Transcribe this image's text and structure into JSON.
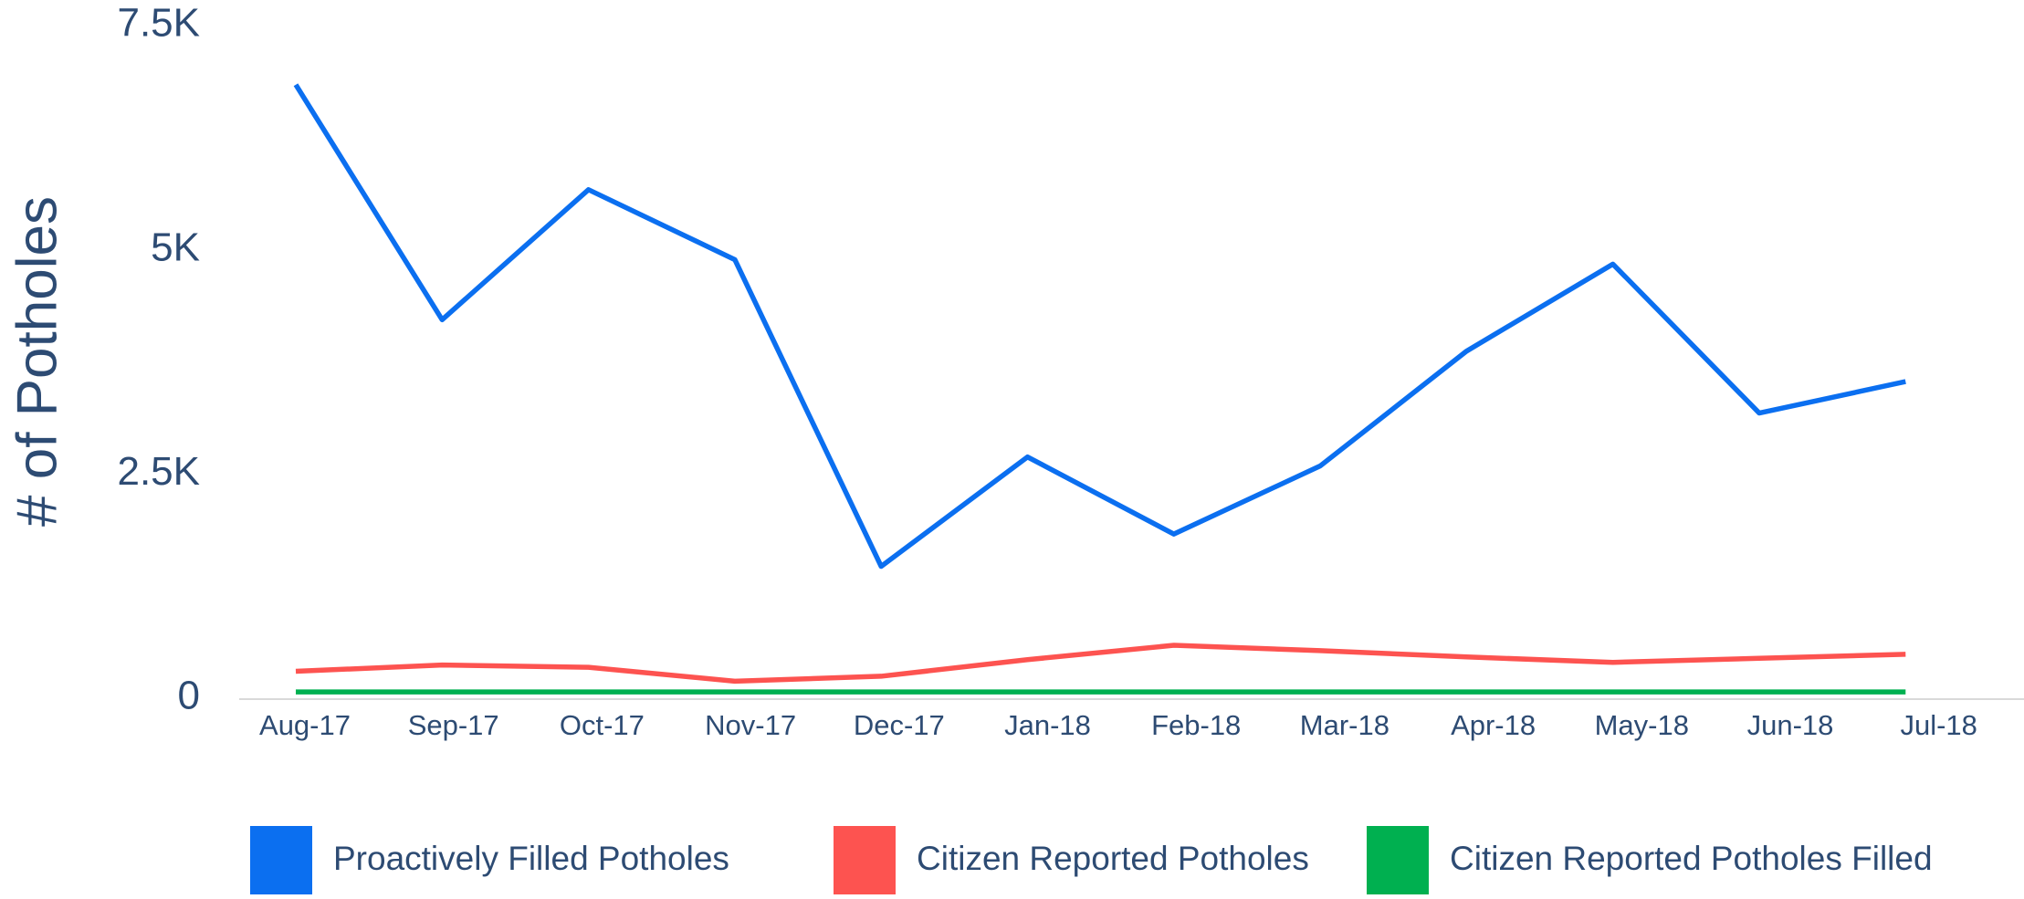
{
  "chart_data": {
    "type": "line",
    "y_label": "# of Potholes",
    "categories": [
      "Aug-17",
      "Sep-17",
      "Oct-17",
      "Nov-17",
      "Dec-17",
      "Jan-18",
      "Feb-18",
      "Mar-18",
      "Apr-18",
      "May-18",
      "Jun-18",
      "Jul-18"
    ],
    "series": [
      {
        "name": "Proactively Filled Potholes",
        "color": "#0b6ff0",
        "values": [
          6840,
          4220,
          5670,
          4890,
          1470,
          2690,
          1830,
          2590,
          3870,
          4840,
          3180,
          3530
        ]
      },
      {
        "name": "Citizen Reported Potholes",
        "color": "#fd5350",
        "values": [
          300,
          370,
          345,
          190,
          245,
          430,
          590,
          530,
          460,
          400,
          445,
          490
        ]
      },
      {
        "name": "Citizen Reported Potholes Filled",
        "color": "#00b050",
        "values": [
          70,
          70,
          70,
          70,
          70,
          70,
          70,
          70,
          70,
          70,
          70,
          70
        ]
      }
    ],
    "ylim": [
      0,
      7500
    ],
    "yticks": [
      0,
      {
        "value": 2500,
        "label": "2.5K"
      },
      {
        "value": 5000,
        "label": "5K"
      },
      {
        "value": 7500,
        "label": "7.5K"
      }
    ],
    "grid": false,
    "legend": "bottom"
  }
}
